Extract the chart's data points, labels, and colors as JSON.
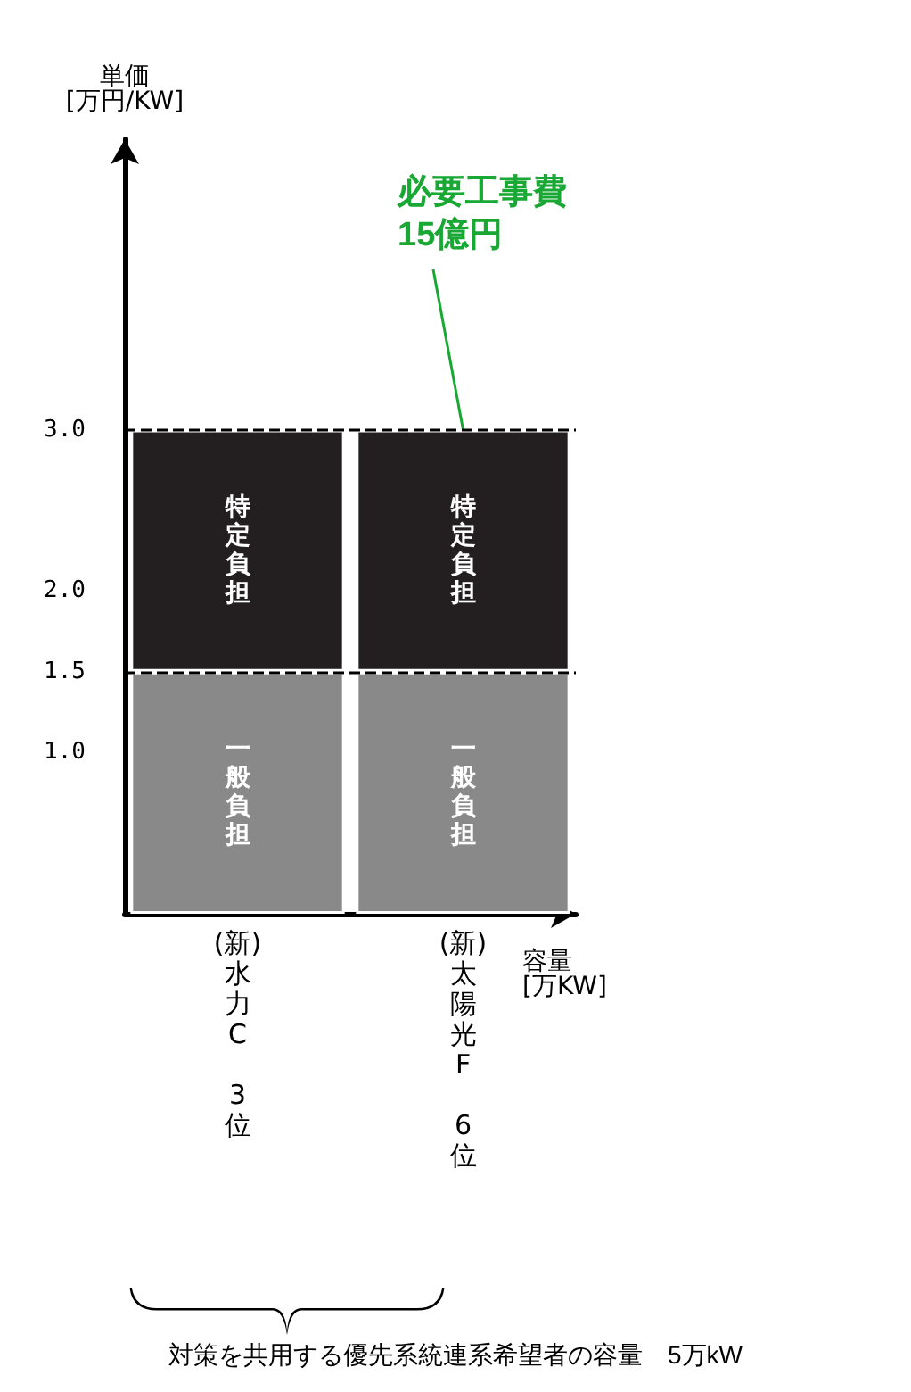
{
  "chart_data": {
    "type": "bar",
    "stacked": true,
    "ylabel": "単価\n[万円/KW]",
    "xlabel": "容量\n[万KW]",
    "categories": [
      "(新)\n水力C\n3位",
      "(新)\n太陽光F\n6位"
    ],
    "series": [
      {
        "name": "一般負担",
        "color": "#898989",
        "values": [
          1.5,
          1.5
        ]
      },
      {
        "name": "特定負担",
        "color": "#231f20",
        "values": [
          1.5,
          1.5
        ]
      }
    ],
    "ylim": [
      0,
      4.8
    ],
    "yticks": [
      {
        "value": 1,
        "label": "1.0"
      },
      {
        "value": 1.5,
        "label": "1.5"
      },
      {
        "value": 2,
        "label": "2.0"
      },
      {
        "value": 3,
        "label": "3.0"
      }
    ],
    "ref_lines": [
      {
        "axis": "y",
        "value": 3,
        "color": "#000000",
        "line_style": "dashed"
      },
      {
        "axis": "y",
        "value": 1.5,
        "color": "#000000",
        "line_style": "dashed"
      }
    ],
    "annotations": [
      {
        "text": "必要工事費\n15億円",
        "x": "(新)\n太陽光F\n6位",
        "y": 3
      },
      "対策を共用する優先系統連系希望者の容量　5万kW"
    ],
    "grid": false,
    "legend": false
  }
}
